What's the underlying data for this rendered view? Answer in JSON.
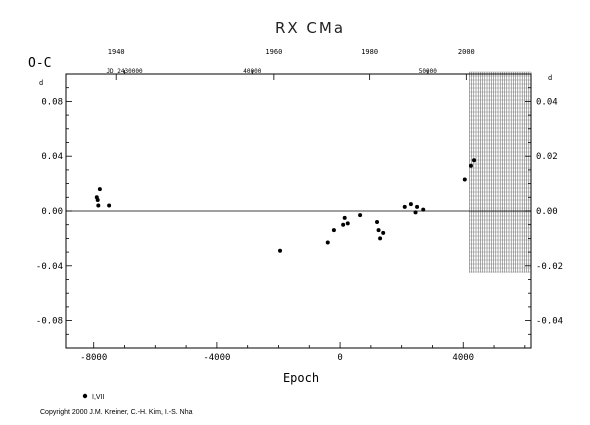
{
  "chart_data": {
    "type": "scatter",
    "title": "RX CMa",
    "xlabel": "Epoch",
    "ylabel": "O-C",
    "ylabel_unit": "d",
    "right_axis_unit": "d",
    "xlim": [
      -8900,
      6200
    ],
    "ylim": [
      -0.1,
      0.1
    ],
    "right_ylim": [
      -0.05,
      0.05
    ],
    "x_ticks": [
      -8000,
      -4000,
      0,
      4000
    ],
    "x_tick_labels": [
      "-8000",
      "-4000",
      "0",
      "4000"
    ],
    "y_ticks": [
      -0.08,
      -0.04,
      0.0,
      0.04,
      0.08
    ],
    "y_tick_labels": [
      "-0.08",
      "-0.04",
      "0.00",
      "0.04",
      "0.08"
    ],
    "right_ticks": [
      -0.04,
      -0.02,
      0.0,
      0.02,
      0.04
    ],
    "right_tick_labels": [
      "-0.04",
      "-0.02",
      "0.00",
      "0.02",
      "0.04"
    ],
    "top_year_ticks": [
      {
        "label": "1940",
        "epoch": -7270
      },
      {
        "label": "1960",
        "epoch": -2150
      },
      {
        "label": "1980",
        "epoch": 960
      },
      {
        "label": "2000",
        "epoch": 4100
      }
    ],
    "top_jd_labels": [
      {
        "label": "JD 2430000",
        "epoch": -7000
      },
      {
        "label": "40000",
        "epoch": -2850
      },
      {
        "label": "50000",
        "epoch": 2850
      }
    ],
    "shaded_band": [
      4200,
      6200
    ],
    "series": [
      {
        "marker": "filled-circle",
        "points": [
          {
            "x": -7900,
            "y": 0.01
          },
          {
            "x": -7870,
            "y": 0.008
          },
          {
            "x": -7850,
            "y": 0.004
          },
          {
            "x": -7800,
            "y": 0.016
          },
          {
            "x": -7500,
            "y": 0.004
          },
          {
            "x": -1950,
            "y": -0.029
          },
          {
            "x": -400,
            "y": -0.023
          },
          {
            "x": -200,
            "y": -0.014
          },
          {
            "x": 100,
            "y": -0.01
          },
          {
            "x": 150,
            "y": -0.005
          },
          {
            "x": 250,
            "y": -0.009
          },
          {
            "x": 650,
            "y": -0.003
          },
          {
            "x": 1200,
            "y": -0.008
          },
          {
            "x": 1250,
            "y": -0.014
          },
          {
            "x": 1300,
            "y": -0.02
          },
          {
            "x": 1400,
            "y": -0.016
          },
          {
            "x": 2100,
            "y": 0.003
          },
          {
            "x": 2300,
            "y": 0.005
          },
          {
            "x": 2450,
            "y": -0.001
          },
          {
            "x": 2500,
            "y": 0.003
          },
          {
            "x": 2700,
            "y": 0.001
          },
          {
            "x": 4050,
            "y": 0.023
          },
          {
            "x": 4250,
            "y": 0.033
          },
          {
            "x": 4350,
            "y": 0.037
          }
        ]
      }
    ],
    "legend": {
      "label": "I,VII",
      "placement": "bottom-left"
    }
  },
  "footer": {
    "copyright": "Copyright 2000 J.M. Kreiner, C.-H. Kim, I.-S. Nha"
  }
}
